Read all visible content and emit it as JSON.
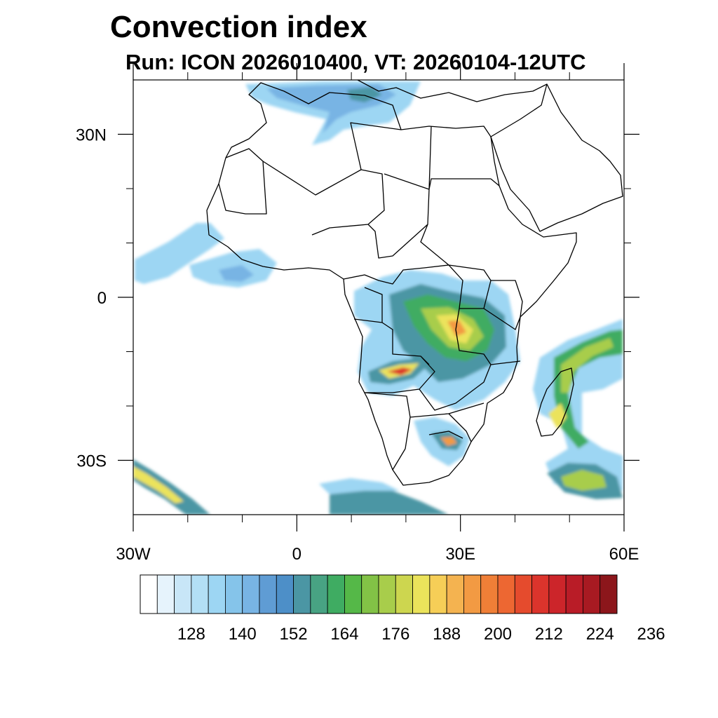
{
  "title": "Convection index",
  "subtitle": "Run: ICON 2026010400,  VT: 20260104-12UTC",
  "map": {
    "lon_range": [
      -30,
      60
    ],
    "lat_range": [
      -40,
      40
    ],
    "lat_labels": [
      {
        "lat": 30,
        "text": "30N"
      },
      {
        "lat": 0,
        "text": "0"
      },
      {
        "lat": -30,
        "text": "30S"
      }
    ],
    "lon_labels": [
      {
        "lon": -30,
        "text": "30W"
      },
      {
        "lon": 0,
        "text": "0"
      },
      {
        "lon": 30,
        "text": "30E"
      },
      {
        "lon": 60,
        "text": "60E"
      }
    ],
    "minor_ticks_lon": [
      -20,
      -10,
      10,
      20,
      40,
      50
    ],
    "minor_ticks_lat": [
      20,
      10,
      -10,
      -20
    ]
  },
  "colorbar": {
    "labels": [
      "128",
      "140",
      "152",
      "164",
      "176",
      "188",
      "200",
      "212",
      "224",
      "236"
    ],
    "colors": [
      "#ffffff",
      "#e6f3fc",
      "#c8e6f7",
      "#b3dff5",
      "#9dd6f3",
      "#85c4ea",
      "#78b4e4",
      "#5f9cd4",
      "#4d8fc8",
      "#4b96a4",
      "#48a383",
      "#3fac62",
      "#55b848",
      "#82c246",
      "#a8cd4b",
      "#cdd64f",
      "#ebe35b",
      "#f6ce57",
      "#f4b350",
      "#f29a43",
      "#f07f37",
      "#ed6732",
      "#e54b2d",
      "#dc342c",
      "#cc252a",
      "#b91c27",
      "#a81a22",
      "#8c161b"
    ]
  },
  "field_colors": {
    "light_blue": "#9dd6f3",
    "mid_blue": "#78b4e4",
    "teal": "#4b96a4",
    "green": "#3fac62",
    "yellow_green": "#a8cd4b",
    "yellow": "#ebe35b",
    "orange": "#f29a43",
    "red": "#dc342c"
  }
}
